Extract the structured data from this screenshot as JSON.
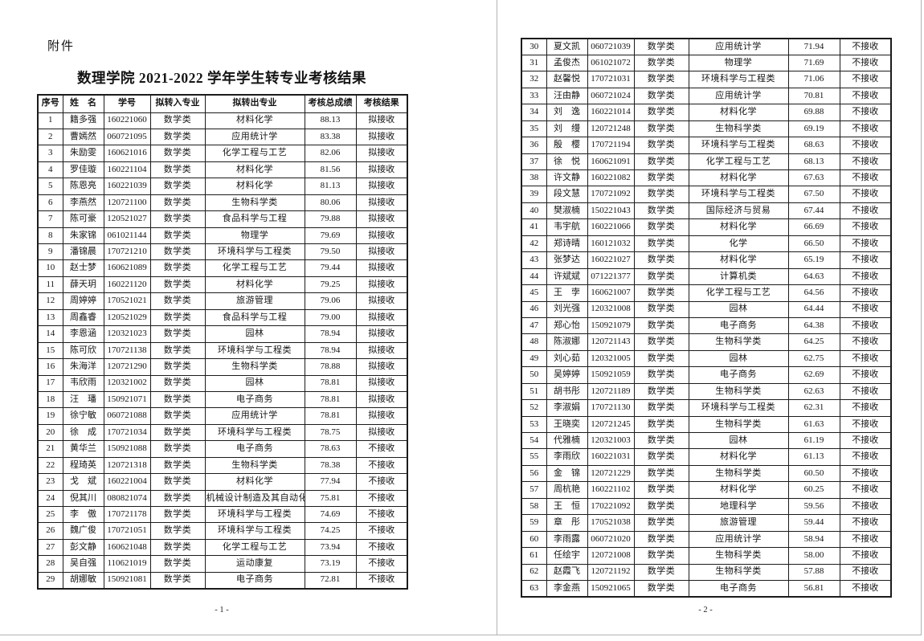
{
  "attachment_label": "附件",
  "title": "数理学院 2021-2022 学年学生转专业考核结果",
  "columns": [
    "序号",
    "姓　名",
    "学号",
    "拟转入专业",
    "拟转出专业",
    "考核总成绩",
    "考核结果"
  ],
  "column_keys": [
    "no",
    "name",
    "student-id",
    "major-in",
    "major-out",
    "score",
    "result"
  ],
  "page1": {
    "footer": "- 1 -",
    "rows": [
      [
        "1",
        "籍多强",
        "160221060",
        "数学类",
        "材料化学",
        "88.13",
        "拟接收"
      ],
      [
        "2",
        "曹嫣然",
        "060721095",
        "数学类",
        "应用统计学",
        "83.38",
        "拟接收"
      ],
      [
        "3",
        "朱励雯",
        "160621016",
        "数学类",
        "化学工程与工艺",
        "82.06",
        "拟接收"
      ],
      [
        "4",
        "罗佳璇",
        "160221104",
        "数学类",
        "材料化学",
        "81.56",
        "拟接收"
      ],
      [
        "5",
        "陈恩亮",
        "160221039",
        "数学类",
        "材料化学",
        "81.13",
        "拟接收"
      ],
      [
        "6",
        "李燕然",
        "120721100",
        "数学类",
        "生物科学类",
        "80.06",
        "拟接收"
      ],
      [
        "7",
        "陈可豪",
        "120521027",
        "数学类",
        "食品科学与工程",
        "79.88",
        "拟接收"
      ],
      [
        "8",
        "朱家锦",
        "061021144",
        "数学类",
        "物理学",
        "79.69",
        "拟接收"
      ],
      [
        "9",
        "潘锦晨",
        "170721210",
        "数学类",
        "环境科学与工程类",
        "79.50",
        "拟接收"
      ],
      [
        "10",
        "赵士梦",
        "160621089",
        "数学类",
        "化学工程与工艺",
        "79.44",
        "拟接收"
      ],
      [
        "11",
        "薛天玥",
        "160221120",
        "数学类",
        "材料化学",
        "79.25",
        "拟接收"
      ],
      [
        "12",
        "周婷婷",
        "170521021",
        "数学类",
        "旅游管理",
        "79.06",
        "拟接收"
      ],
      [
        "13",
        "周鑫睿",
        "120521029",
        "数学类",
        "食品科学与工程",
        "79.00",
        "拟接收"
      ],
      [
        "14",
        "李恩涵",
        "120321023",
        "数学类",
        "园林",
        "78.94",
        "拟接收"
      ],
      [
        "15",
        "陈可欣",
        "170721138",
        "数学类",
        "环境科学与工程类",
        "78.94",
        "拟接收"
      ],
      [
        "16",
        "朱海洋",
        "120721290",
        "数学类",
        "生物科学类",
        "78.88",
        "拟接收"
      ],
      [
        "17",
        "韦欣雨",
        "120321002",
        "数学类",
        "园林",
        "78.81",
        "拟接收"
      ],
      [
        "18",
        "汪　璠",
        "150921071",
        "数学类",
        "电子商务",
        "78.81",
        "拟接收"
      ],
      [
        "19",
        "徐宁敏",
        "060721088",
        "数学类",
        "应用统计学",
        "78.81",
        "拟接收"
      ],
      [
        "20",
        "徐　成",
        "170721034",
        "数学类",
        "环境科学与工程类",
        "78.75",
        "拟接收"
      ],
      [
        "21",
        "黄华兰",
        "150921088",
        "数学类",
        "电子商务",
        "78.63",
        "不接收"
      ],
      [
        "22",
        "程琦英",
        "120721318",
        "数学类",
        "生物科学类",
        "78.38",
        "不接收"
      ],
      [
        "23",
        "戈　斌",
        "160221004",
        "数学类",
        "材料化学",
        "77.94",
        "不接收"
      ],
      [
        "24",
        "倪其川",
        "080821074",
        "数学类",
        "机械设计制造及其自动化",
        "75.81",
        "不接收"
      ],
      [
        "25",
        "李　傲",
        "170721178",
        "数学类",
        "环境科学与工程类",
        "74.69",
        "不接收"
      ],
      [
        "26",
        "魏广俊",
        "170721051",
        "数学类",
        "环境科学与工程类",
        "74.25",
        "不接收"
      ],
      [
        "27",
        "彭文静",
        "160621048",
        "数学类",
        "化学工程与工艺",
        "73.94",
        "不接收"
      ],
      [
        "28",
        "吴自强",
        "110621019",
        "数学类",
        "运动康复",
        "73.19",
        "不接收"
      ],
      [
        "29",
        "胡娜敏",
        "150921081",
        "数学类",
        "电子商务",
        "72.81",
        "不接收"
      ]
    ]
  },
  "page2": {
    "footer": "- 2 -",
    "rows": [
      [
        "30",
        "夏文凯",
        "060721039",
        "数学类",
        "应用统计学",
        "71.94",
        "不接收"
      ],
      [
        "31",
        "孟俊杰",
        "061021072",
        "数学类",
        "物理学",
        "71.69",
        "不接收"
      ],
      [
        "32",
        "赵馨悦",
        "170721031",
        "数学类",
        "环境科学与工程类",
        "71.06",
        "不接收"
      ],
      [
        "33",
        "汪由静",
        "060721024",
        "数学类",
        "应用统计学",
        "70.81",
        "不接收"
      ],
      [
        "34",
        "刘　逸",
        "160221014",
        "数学类",
        "材料化学",
        "69.88",
        "不接收"
      ],
      [
        "35",
        "刘　缦",
        "120721248",
        "数学类",
        "生物科学类",
        "69.19",
        "不接收"
      ],
      [
        "36",
        "殷　樱",
        "170721194",
        "数学类",
        "环境科学与工程类",
        "68.63",
        "不接收"
      ],
      [
        "37",
        "徐　悦",
        "160621091",
        "数学类",
        "化学工程与工艺",
        "68.13",
        "不接收"
      ],
      [
        "38",
        "许文静",
        "160221082",
        "数学类",
        "材料化学",
        "67.63",
        "不接收"
      ],
      [
        "39",
        "段文慧",
        "170721092",
        "数学类",
        "环境科学与工程类",
        "67.50",
        "不接收"
      ],
      [
        "40",
        "樊淑楠",
        "150221043",
        "数学类",
        "国际经济与贸易",
        "67.44",
        "不接收"
      ],
      [
        "41",
        "韦宇航",
        "160221066",
        "数学类",
        "材料化学",
        "66.69",
        "不接收"
      ],
      [
        "42",
        "郑诗晴",
        "160121032",
        "数学类",
        "化学",
        "66.50",
        "不接收"
      ],
      [
        "43",
        "张梦达",
        "160221027",
        "数学类",
        "材料化学",
        "65.19",
        "不接收"
      ],
      [
        "44",
        "许斌斌",
        "071221377",
        "数学类",
        "计算机类",
        "64.63",
        "不接收"
      ],
      [
        "45",
        "王　孛",
        "160621007",
        "数学类",
        "化学工程与工艺",
        "64.56",
        "不接收"
      ],
      [
        "46",
        "刘光强",
        "120321008",
        "数学类",
        "园林",
        "64.44",
        "不接收"
      ],
      [
        "47",
        "郑心怡",
        "150921079",
        "数学类",
        "电子商务",
        "64.38",
        "不接收"
      ],
      [
        "48",
        "陈淑娜",
        "120721143",
        "数学类",
        "生物科学类",
        "64.25",
        "不接收"
      ],
      [
        "49",
        "刘心茹",
        "120321005",
        "数学类",
        "园林",
        "62.75",
        "不接收"
      ],
      [
        "50",
        "吴婷婷",
        "150921059",
        "数学类",
        "电子商务",
        "62.69",
        "不接收"
      ],
      [
        "51",
        "胡书彤",
        "120721189",
        "数学类",
        "生物科学类",
        "62.63",
        "不接收"
      ],
      [
        "52",
        "李淑娟",
        "170721130",
        "数学类",
        "环境科学与工程类",
        "62.31",
        "不接收"
      ],
      [
        "53",
        "王晓奕",
        "120721245",
        "数学类",
        "生物科学类",
        "61.63",
        "不接收"
      ],
      [
        "54",
        "代雅楠",
        "120321003",
        "数学类",
        "园林",
        "61.19",
        "不接收"
      ],
      [
        "55",
        "李雨欣",
        "160221031",
        "数学类",
        "材料化学",
        "61.13",
        "不接收"
      ],
      [
        "56",
        "金　锦",
        "120721229",
        "数学类",
        "生物科学类",
        "60.50",
        "不接收"
      ],
      [
        "57",
        "周杭艳",
        "160221102",
        "数学类",
        "材料化学",
        "60.25",
        "不接收"
      ],
      [
        "58",
        "王　恒",
        "170221092",
        "数学类",
        "地理科学",
        "59.56",
        "不接收"
      ],
      [
        "59",
        "章　彤",
        "170521038",
        "数学类",
        "旅游管理",
        "59.44",
        "不接收"
      ],
      [
        "60",
        "李雨露",
        "060721020",
        "数学类",
        "应用统计学",
        "58.94",
        "不接收"
      ],
      [
        "61",
        "任绘宇",
        "120721008",
        "数学类",
        "生物科学类",
        "58.00",
        "不接收"
      ],
      [
        "62",
        "赵霞飞",
        "120721192",
        "数学类",
        "生物科学类",
        "57.88",
        "不接收"
      ],
      [
        "63",
        "李金燕",
        "150921065",
        "数学类",
        "电子商务",
        "56.81",
        "不接收"
      ]
    ]
  }
}
